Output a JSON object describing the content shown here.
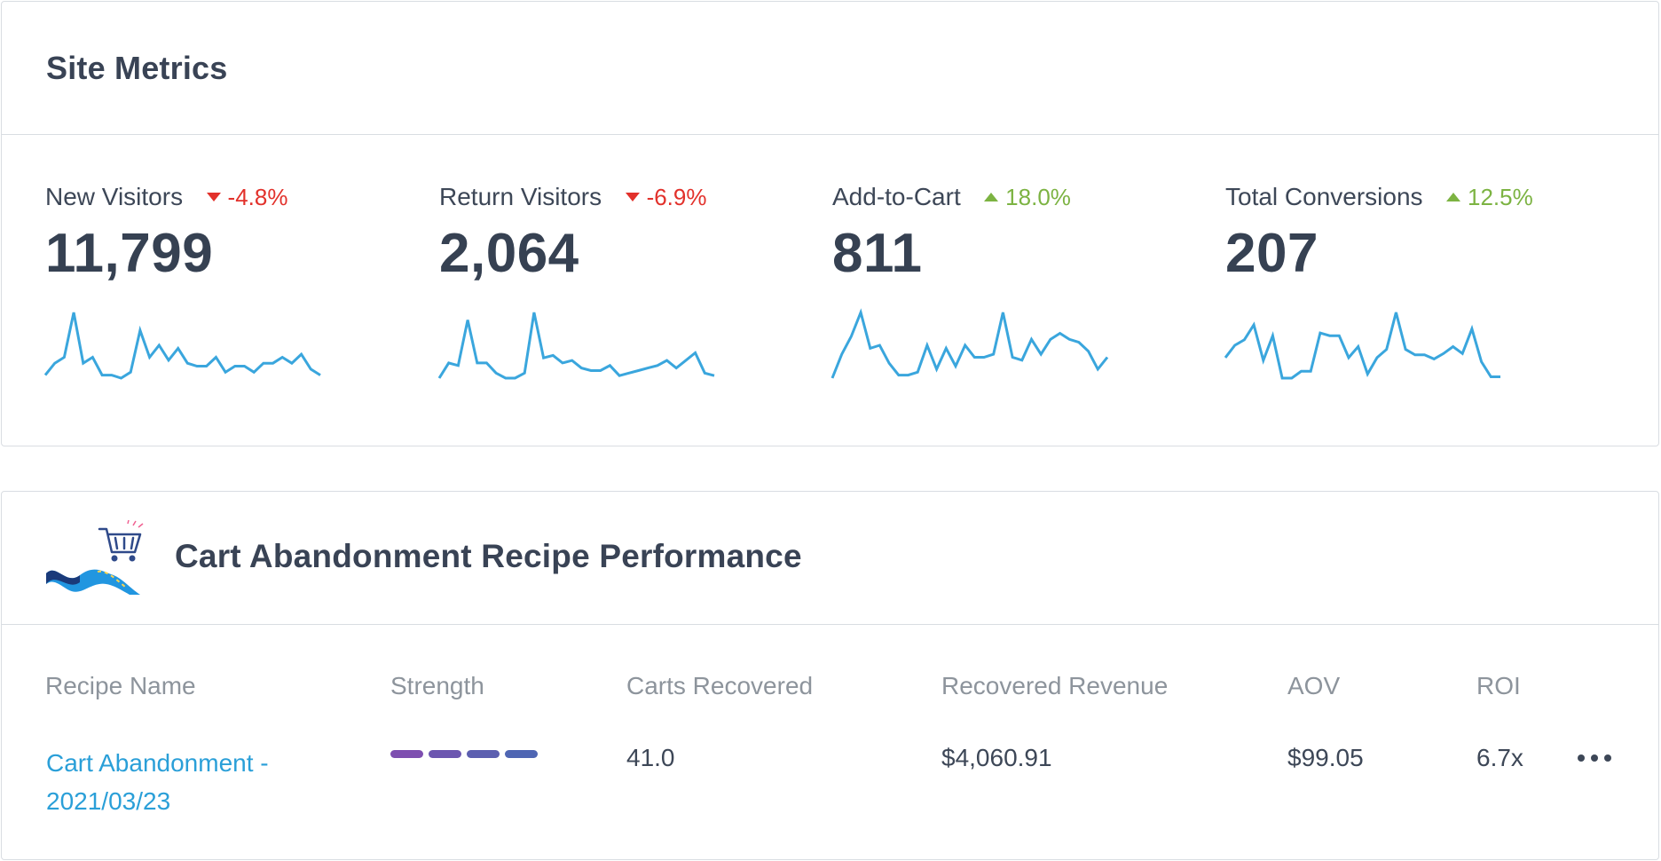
{
  "site_metrics": {
    "title": "Site Metrics",
    "metrics": [
      {
        "label": "New Visitors",
        "change": "-4.8%",
        "direction": "down",
        "value": "11,799",
        "trend": [
          5,
          9,
          11,
          26,
          9,
          11,
          5,
          5,
          4,
          6,
          20,
          11,
          15,
          10,
          14,
          9,
          8,
          8,
          11,
          6,
          8,
          8,
          6,
          9,
          9,
          11,
          9,
          12,
          7,
          5
        ]
      },
      {
        "label": "Return Visitors",
        "change": "-6.9%",
        "direction": "down",
        "value": "2,064",
        "trend": [
          6,
          12,
          11,
          29,
          12,
          12,
          8,
          6,
          6,
          8,
          32,
          14,
          15,
          12,
          13,
          10,
          9,
          9,
          11,
          7,
          8,
          9,
          10,
          11,
          13,
          10,
          13,
          16,
          8,
          7
        ]
      },
      {
        "label": "Add-to-Cart",
        "change": "18.0%",
        "direction": "up",
        "value": "811",
        "trend": [
          3,
          11,
          17,
          25,
          13,
          14,
          8,
          4,
          4,
          5,
          14,
          6,
          13,
          7,
          14,
          10,
          10,
          11,
          25,
          10,
          9,
          16,
          11,
          16,
          18,
          16,
          15,
          12,
          6,
          10
        ]
      },
      {
        "label": "Total Conversions",
        "change": "12.5%",
        "direction": "up",
        "value": "207",
        "trend": [
          20,
          29,
          33,
          44,
          18,
          36,
          5,
          5,
          10,
          10,
          38,
          36,
          36,
          20,
          28,
          8,
          20,
          26,
          53,
          26,
          22,
          22,
          19,
          23,
          28,
          23,
          41,
          17,
          6,
          6
        ]
      }
    ]
  },
  "recipe_performance": {
    "title": "Cart Abandonment Recipe Performance",
    "columns": [
      "Recipe Name",
      "Strength",
      "Carts Recovered",
      "Recovered Revenue",
      "AOV",
      "ROI"
    ],
    "rows": [
      {
        "name_line1": "Cart Abandonment -",
        "name_line2": "2021/03/23",
        "strength_level": 4,
        "strength_max": 4,
        "carts_recovered": "41.0",
        "recovered_revenue": "$4,060.91",
        "aov": "$99.05",
        "roi": "6.7x"
      }
    ],
    "strength_colors": [
      "#7e4fb0",
      "#6c56b0",
      "#5c5fb0",
      "#4f66b3"
    ]
  },
  "colors": {
    "sparkline": "#3aa6dd",
    "link": "#2a9fd8",
    "down": "#e2312b",
    "up": "#7cb342"
  }
}
